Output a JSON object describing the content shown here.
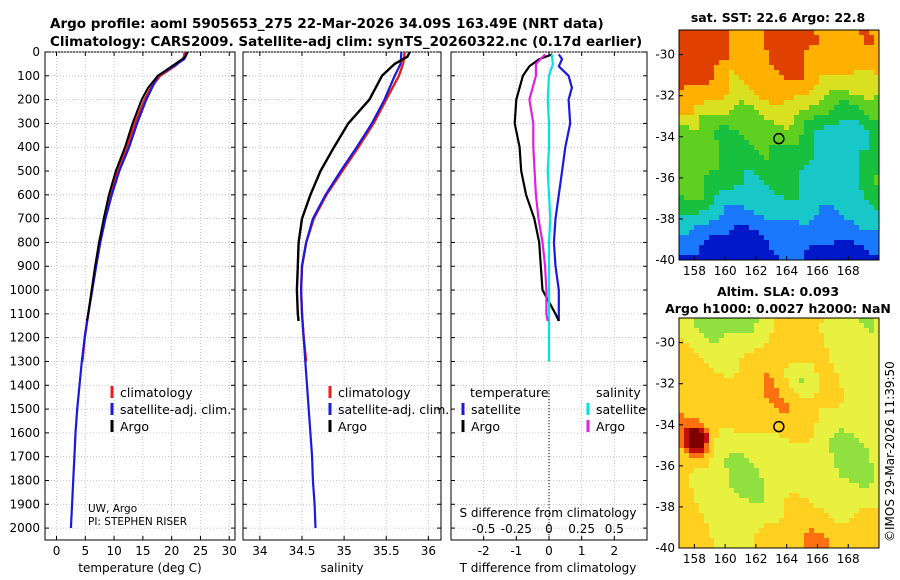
{
  "header": {
    "line1": "Argo profile: aoml 5905653_275 22-Mar-2026 34.09S 163.49E (NRT data)",
    "line2": "Climatology: CARS2009. Satellite-adj clim: synTS_20260322.nc (0.17d earlier)"
  },
  "colors": {
    "climatology": "#e02020",
    "satellite_adj": "#1a1adc",
    "argo": "#000000",
    "t_satellite": "#1a1adc",
    "s_satellite": "#00e4e4",
    "s_argo": "#e020e0"
  },
  "pi_info": {
    "line1": "UW, Argo",
    "line2": "PI: STEPHEN RISER"
  },
  "legends": {
    "temperature": {
      "climatology": "climatology",
      "satellite": "satellite-adj. clim.",
      "argo": "Argo"
    },
    "salinity": {
      "climatology": "climatology",
      "satellite": "satellite-adj. clim.",
      "argo": "Argo"
    },
    "difference": {
      "temp_header": "temperature",
      "sal_header": "salinity",
      "temp_satellite": "satellite",
      "temp_argo": "Argo",
      "sal_satellite": "satellite",
      "sal_argo": "Argo"
    }
  },
  "chart_data": [
    {
      "type": "line",
      "id": "temperature-profile",
      "xlabel": "temperature (deg C)",
      "ylabel": "",
      "xlim": [
        -2,
        31
      ],
      "ylim": [
        2050,
        0
      ],
      "xticks": [
        0,
        5,
        10,
        15,
        20,
        25,
        30
      ],
      "yticks": [
        0,
        100,
        200,
        300,
        400,
        500,
        600,
        700,
        800,
        900,
        1000,
        1100,
        1200,
        1300,
        1400,
        1500,
        1600,
        1700,
        1800,
        1900,
        2000
      ],
      "series": [
        {
          "name": "climatology",
          "depth": [
            0,
            30,
            60,
            100,
            150,
            200,
            300,
            400,
            500,
            600,
            700,
            800,
            900,
            1000,
            1100,
            1200,
            1300
          ],
          "values": [
            22.3,
            22.0,
            20.5,
            18.0,
            16.4,
            15.3,
            13.6,
            12.2,
            10.5,
            9.4,
            8.4,
            7.4,
            6.8,
            6.2,
            5.5,
            4.9,
            4.5
          ]
        },
        {
          "name": "satellite-adj. clim.",
          "depth": [
            0,
            30,
            60,
            100,
            150,
            200,
            300,
            400,
            500,
            600,
            700,
            800,
            900,
            1000,
            1100,
            1200,
            1300,
            1400,
            1500,
            1600,
            1700,
            1800,
            1900,
            2000
          ],
          "values": [
            22.6,
            22.2,
            20.3,
            17.6,
            16.6,
            15.6,
            14.0,
            12.6,
            10.9,
            9.6,
            8.5,
            7.6,
            6.9,
            6.2,
            5.5,
            4.9,
            4.4,
            4.0,
            3.6,
            3.3,
            3.1,
            2.9,
            2.7,
            2.5
          ]
        },
        {
          "name": "Argo",
          "depth": [
            0,
            20,
            60,
            100,
            150,
            200,
            300,
            400,
            500,
            600,
            700,
            800,
            900,
            1000,
            1100,
            1130
          ],
          "values": [
            22.8,
            22.4,
            20.0,
            17.6,
            15.9,
            14.8,
            13.2,
            11.9,
            10.3,
            9.1,
            8.2,
            7.4,
            6.7,
            6.1,
            5.5,
            5.3
          ]
        }
      ]
    },
    {
      "type": "line",
      "id": "salinity-profile",
      "xlabel": "salinity",
      "ylabel": "",
      "xlim": [
        33.8,
        36.15
      ],
      "ylim": [
        2050,
        0
      ],
      "xticks": [
        34,
        34.5,
        35,
        35.5,
        36
      ],
      "series": [
        {
          "name": "climatology",
          "depth": [
            0,
            50,
            100,
            200,
            300,
            400,
            500,
            600,
            700,
            800,
            900,
            1000,
            1100,
            1200,
            1300
          ],
          "values": [
            35.72,
            35.7,
            35.65,
            35.5,
            35.35,
            35.17,
            34.98,
            34.79,
            34.64,
            34.55,
            34.5,
            34.49,
            34.5,
            34.52,
            34.55
          ]
        },
        {
          "name": "satellite-adj. clim.",
          "depth": [
            0,
            50,
            100,
            200,
            300,
            400,
            500,
            600,
            700,
            800,
            900,
            1000,
            1100,
            1200,
            1300,
            1400,
            1500,
            1600,
            1700,
            1800,
            1900,
            2000
          ],
          "values": [
            35.68,
            35.67,
            35.6,
            35.48,
            35.33,
            35.15,
            34.96,
            34.78,
            34.63,
            34.55,
            34.5,
            34.49,
            34.5,
            34.52,
            34.54,
            34.56,
            34.58,
            34.6,
            34.62,
            34.63,
            34.65,
            34.66
          ]
        },
        {
          "name": "Argo",
          "depth": [
            0,
            20,
            50,
            100,
            200,
            300,
            400,
            500,
            600,
            700,
            800,
            900,
            1000,
            1100,
            1130
          ],
          "values": [
            35.78,
            35.75,
            35.6,
            35.45,
            35.3,
            35.05,
            34.88,
            34.72,
            34.6,
            34.5,
            34.46,
            34.45,
            34.44,
            34.45,
            34.46
          ]
        }
      ]
    },
    {
      "type": "line",
      "id": "difference-profile",
      "xlabel": "T difference from climatology",
      "top_label": "S difference from climatology",
      "xlim": [
        -3,
        3
      ],
      "ylim": [
        2050,
        0
      ],
      "xticks": [
        -2,
        -1,
        0,
        1,
        2
      ],
      "secondary_xticks": [
        -0.5,
        -0.25,
        0,
        0.25,
        0.5
      ],
      "secondary_xlim": [
        -0.75,
        0.75
      ],
      "series": [
        {
          "name": "temperature satellite",
          "depth": [
            10,
            30,
            60,
            100,
            150,
            200,
            300,
            400,
            500,
            600,
            700,
            800,
            900,
            1000,
            1100,
            1130
          ],
          "values": [
            0.3,
            0.4,
            0.3,
            0.6,
            0.7,
            0.6,
            0.65,
            0.5,
            0.4,
            0.3,
            0.2,
            0.15,
            0.2,
            0.3,
            0.3,
            0.3
          ]
        },
        {
          "name": "temperature Argo",
          "depth": [
            10,
            30,
            60,
            100,
            150,
            200,
            300,
            400,
            500,
            600,
            700,
            800,
            900,
            1000,
            1100,
            1130
          ],
          "values": [
            0.1,
            -0.3,
            -0.6,
            -0.8,
            -0.9,
            -1.0,
            -1.05,
            -0.9,
            -0.85,
            -0.7,
            -0.45,
            -0.3,
            -0.25,
            -0.2,
            0.2,
            0.3
          ]
        },
        {
          "name": "salinity satellite",
          "depth": [
            10,
            50,
            100,
            200,
            300,
            400,
            500,
            600,
            700,
            800,
            900,
            1000,
            1100,
            1200,
            1300
          ],
          "values": [
            0.02,
            0.03,
            0.0,
            -0.01,
            0.0,
            0.0,
            -0.01,
            0.0,
            0.01,
            0.0,
            0.0,
            0.0,
            0.0,
            0.0,
            0.0
          ]
        },
        {
          "name": "salinity Argo",
          "depth": [
            10,
            50,
            100,
            200,
            300,
            400,
            500,
            600,
            700,
            800,
            900,
            1000,
            1100,
            1130
          ],
          "values": [
            -0.03,
            -0.1,
            -0.1,
            -0.15,
            -0.12,
            -0.12,
            -0.11,
            -0.1,
            -0.08,
            -0.05,
            -0.03,
            -0.02,
            -0.02,
            -0.01
          ]
        }
      ]
    },
    {
      "type": "heatmap",
      "id": "sst-map",
      "title": "sat. SST: 22.6  Argo: 22.8",
      "xticks": [
        158,
        160,
        162,
        164,
        166,
        168
      ],
      "yticks": [
        -30,
        -32,
        -34,
        -36,
        -38,
        -40
      ],
      "xlim": [
        157,
        170
      ],
      "ylim": [
        -40,
        -28.8
      ],
      "marker": {
        "lon": 163.49,
        "lat": -34.09
      }
    },
    {
      "type": "heatmap",
      "id": "sla-map",
      "title_line1": "Altim. SLA: 0.093",
      "title_line2": "Argo h1000: 0.0027 h2000: NaN",
      "xticks": [
        158,
        160,
        162,
        164,
        166,
        168
      ],
      "yticks": [
        -30,
        -32,
        -34,
        -36,
        -38,
        -40
      ],
      "xlim": [
        157,
        170
      ],
      "ylim": [
        -40,
        -28.8
      ],
      "marker": {
        "lon": 163.49,
        "lat": -34.09
      }
    }
  ],
  "watermark": "©IMOS 29-Mar-2026 11:39:50"
}
